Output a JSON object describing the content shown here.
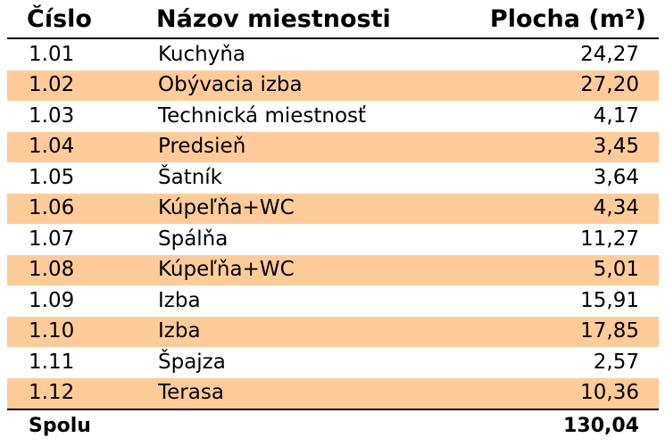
{
  "table": {
    "headers": {
      "number": "Číslo",
      "name": "Názov miestnosti",
      "area": "Plocha (m²)"
    },
    "rows": [
      {
        "number": "1.01",
        "name": "Kuchyňa",
        "area": "24,27"
      },
      {
        "number": "1.02",
        "name": "Obývacia izba",
        "area": "27,20"
      },
      {
        "number": "1.03",
        "name": "Technická miestnosť",
        "area": "4,17"
      },
      {
        "number": "1.04",
        "name": "Predsieň",
        "area": "3,45"
      },
      {
        "number": "1.05",
        "name": "Šatník",
        "area": "3,64"
      },
      {
        "number": "1.06",
        "name": "Kúpeľňa+WC",
        "area": "4,34"
      },
      {
        "number": "1.07",
        "name": "Spálňa",
        "area": "11,27"
      },
      {
        "number": "1.08",
        "name": "Kúpeľňa+WC",
        "area": "5,01"
      },
      {
        "number": "1.09",
        "name": "Izba",
        "area": "15,91"
      },
      {
        "number": "1.10",
        "name": "Izba",
        "area": "17,85"
      },
      {
        "number": "1.11",
        "name": "Špajza",
        "area": "2,57"
      },
      {
        "number": "1.12",
        "name": "Terasa",
        "area": "10,36"
      }
    ],
    "total": {
      "label": "Spolu",
      "area": "130,04"
    },
    "colors": {
      "stripe": "#ffcc99",
      "base": "#ffffff",
      "rule": "#000000"
    }
  }
}
